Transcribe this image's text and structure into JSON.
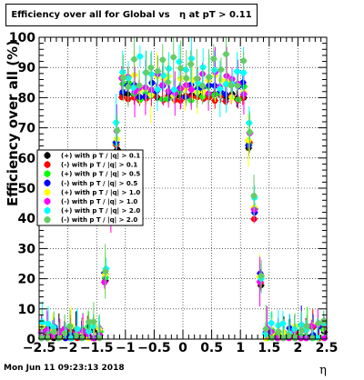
{
  "chart_data": {
    "type": "scatter",
    "title": "Efficiency over all for Global vs   η at pT > 0.11",
    "xlabel": "η",
    "ylabel": "Efficiency over all (%)",
    "xlim": [
      -2.5,
      2.5
    ],
    "ylim": [
      0,
      100
    ],
    "x_ticks": [
      -2.5,
      -2,
      -1.5,
      -1,
      -0.5,
      0,
      0.5,
      1,
      1.5,
      2,
      2.5
    ],
    "x_tick_labels": [
      "−2.5",
      "−2",
      "−1.5",
      "−1",
      "−0.5",
      "0",
      "0.5",
      "1",
      "1.5",
      "2",
      "2.5"
    ],
    "y_ticks": [
      0,
      10,
      20,
      30,
      40,
      50,
      60,
      70,
      80,
      90,
      100
    ],
    "y_tick_labels": [
      "0",
      "10",
      "20",
      "30",
      "40",
      "50",
      "60",
      "70",
      "80",
      "90",
      "100"
    ],
    "grid": true,
    "legend_position": "left-middle",
    "series": [
      {
        "name": "(+) with p T / |q| > 0.1",
        "color": "#000000",
        "plateau": 80.5,
        "jitter": 1.0
      },
      {
        "name": "(-) with p T / |q| > 0.1",
        "color": "#ff0000",
        "plateau": 79.5,
        "jitter": 1.2
      },
      {
        "name": "(+) with p T / |q| > 0.5",
        "color": "#00ff00",
        "plateau": 82.0,
        "jitter": 3.0
      },
      {
        "name": "(-) with p T / |q| > 0.5",
        "color": "#0000ff",
        "plateau": 82.5,
        "jitter": 2.5
      },
      {
        "name": "(+) with p T / |q| > 1.0",
        "color": "#ffff00",
        "plateau": 84.0,
        "jitter": 4.0
      },
      {
        "name": "(-) with p T / |q| > 1.0",
        "color": "#ff00ff",
        "plateau": 85.0,
        "jitter": 4.0
      },
      {
        "name": "(+) with p T / |q| > 2.0",
        "color": "#00ffff",
        "plateau": 88.0,
        "jitter": 6.0
      },
      {
        "name": "(-) with p T / |q| > 2.0",
        "color": "#66cc66",
        "plateau": 89.0,
        "jitter": 6.0
      }
    ],
    "x": [
      -2.45,
      -2.35,
      -2.25,
      -2.15,
      -2.05,
      -1.95,
      -1.85,
      -1.75,
      -1.65,
      -1.55,
      -1.45,
      -1.35,
      -1.25,
      -1.15,
      -1.05,
      -0.95,
      -0.85,
      -0.75,
      -0.65,
      -0.55,
      -0.45,
      -0.35,
      -0.25,
      -0.15,
      -0.05,
      0.05,
      0.15,
      0.25,
      0.35,
      0.45,
      0.55,
      0.65,
      0.75,
      0.85,
      0.95,
      1.05,
      1.15,
      1.25,
      1.35,
      1.45,
      1.55,
      1.65,
      1.75,
      1.85,
      1.95,
      2.05,
      2.15,
      2.25,
      2.35,
      2.45
    ],
    "notes_on_shape": "efficiency near 0-5% for |η|>1.45, steep rise between |η|=1.45 and 1.15, plateau at ~78-98% for |η|<1.05"
  },
  "title_text": "Efficiency over all for Global vs   η at pT > 0.11",
  "timestamp": "Mon Jun 11 09:23:13 2018"
}
